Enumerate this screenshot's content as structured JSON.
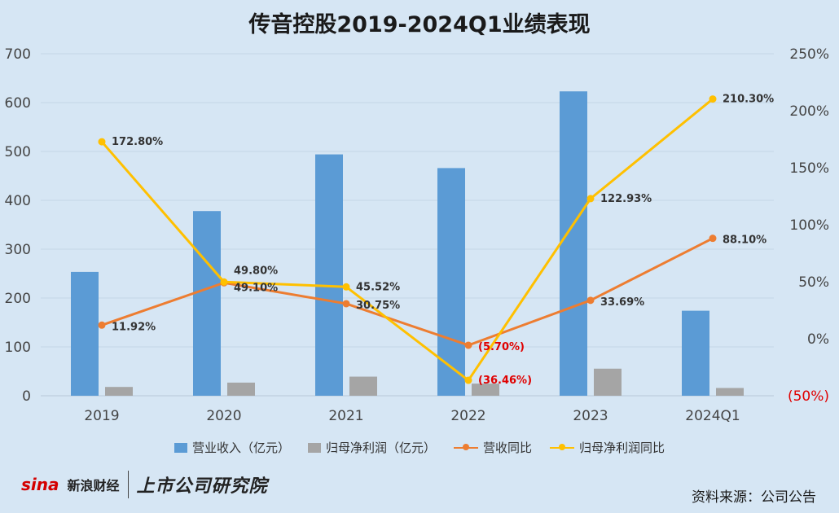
{
  "title": "传音控股2019-2024Q1业绩表现",
  "source": "资料来源：公司公告",
  "logo": {
    "sina": "sina",
    "cn": "新浪财经",
    "institute": "上市公司研究院"
  },
  "colors": {
    "revenue": "#5b9bd5",
    "profit": "#a5a5a5",
    "revenue_yoy": "#ed7d31",
    "profit_yoy": "#ffc000",
    "negative_label": "#e00000"
  },
  "chart_data": {
    "type": "bar",
    "categories": [
      "2019",
      "2020",
      "2021",
      "2022",
      "2023",
      "2024Q1"
    ],
    "left_axis": {
      "ylim": [
        0,
        700
      ],
      "ticks": [
        "0",
        "100",
        "200",
        "300",
        "400",
        "500",
        "600",
        "700"
      ]
    },
    "right_axis": {
      "ylim": [
        -50,
        250
      ],
      "ticks": [
        "(50%)",
        "0%",
        "50%",
        "100%",
        "150%",
        "200%",
        "250%"
      ]
    },
    "grid": true,
    "legend_position": "bottom",
    "series": [
      {
        "name": "营业收入（亿元）",
        "type": "bar",
        "axis": "left",
        "values": [
          253.5,
          378.0,
          494.0,
          466.0,
          623.0,
          174.0
        ]
      },
      {
        "name": "归母净利润（亿元）",
        "type": "bar",
        "axis": "left",
        "values": [
          18.0,
          26.9,
          39.1,
          24.8,
          55.4,
          15.9
        ]
      },
      {
        "name": "营收同比",
        "type": "line",
        "axis": "right",
        "values": [
          11.92,
          49.1,
          30.75,
          -5.7,
          33.69,
          88.1
        ],
        "labels": [
          "11.92%",
          "49.10%",
          "30.75%",
          "(5.70%)",
          "33.69%",
          "88.10%"
        ]
      },
      {
        "name": "归母净利润同比",
        "type": "line",
        "axis": "right",
        "values": [
          172.8,
          49.8,
          45.52,
          -36.46,
          122.93,
          210.3
        ],
        "labels": [
          "172.80%",
          "49.80%",
          "45.52%",
          "(36.46%)",
          "122.93%",
          "210.30%"
        ]
      }
    ]
  }
}
